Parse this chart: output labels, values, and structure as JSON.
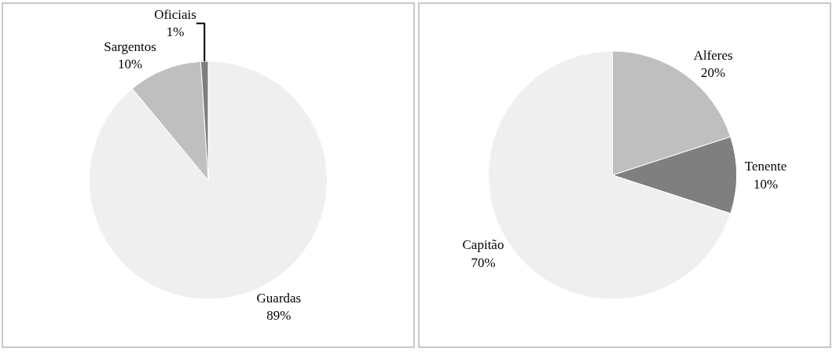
{
  "chart_data": [
    {
      "type": "pie",
      "categories": [
        "Guardas",
        "Sargentos",
        "Oficiais"
      ],
      "values": [
        89,
        10,
        1
      ],
      "value_labels": [
        "89%",
        "10%",
        "1%"
      ],
      "colors": [
        "#efefef",
        "#bfbfbf",
        "#7f7f7f"
      ]
    },
    {
      "type": "pie",
      "categories": [
        "Alferes",
        "Tenente",
        "Capitão"
      ],
      "values": [
        20,
        10,
        70
      ],
      "value_labels": [
        "20%",
        "10%",
        "70%"
      ],
      "colors": [
        "#bfbfbf",
        "#7f7f7f",
        "#efefef"
      ]
    }
  ]
}
